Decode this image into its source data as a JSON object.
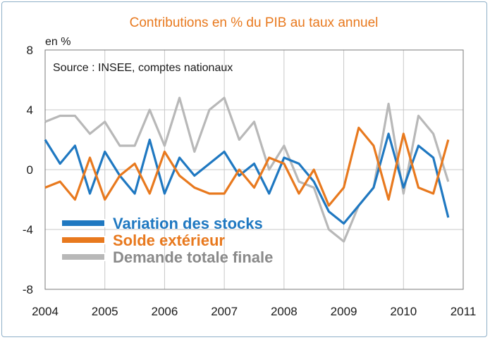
{
  "chart_data": {
    "type": "line",
    "title": "Contributions en % du PIB au taux annuel",
    "unit_label": "en %",
    "source": "Source : INSEE, comptes nationaux",
    "xlabel": "",
    "ylabel": "",
    "xlim": [
      2004,
      2011
    ],
    "ylim": [
      -8,
      8
    ],
    "x_ticks": [
      "2004",
      "2005",
      "2006",
      "2007",
      "2008",
      "2009",
      "2010",
      "2011"
    ],
    "y_ticks": [
      8,
      4,
      0,
      -4,
      -8
    ],
    "y_tick_labels": [
      "8",
      "4",
      "0",
      "-4",
      "-8"
    ],
    "grid": "vertical gridlines at years, horizontal gridlines at y ticks",
    "legend_position": "bottom-left",
    "x": [
      2004.0,
      2004.25,
      2004.5,
      2004.75,
      2005.0,
      2005.25,
      2005.5,
      2005.75,
      2006.0,
      2006.25,
      2006.5,
      2006.75,
      2007.0,
      2007.25,
      2007.5,
      2007.75,
      2008.0,
      2008.25,
      2008.5,
      2008.75,
      2009.0,
      2009.25,
      2009.5,
      2009.75,
      2010.0,
      2010.25,
      2010.5,
      2010.75
    ],
    "series": [
      {
        "name": "Variation des stocks",
        "color": "#1f78c1",
        "values": [
          2.0,
          0.4,
          1.6,
          -1.6,
          1.2,
          -0.4,
          -1.6,
          2.0,
          -1.6,
          0.8,
          -0.4,
          0.4,
          1.2,
          -0.4,
          0.4,
          -1.6,
          0.8,
          0.4,
          -0.8,
          -2.8,
          -3.6,
          -2.4,
          -1.2,
          2.4,
          -1.2,
          1.6,
          0.8,
          -3.2
        ]
      },
      {
        "name": "Solde extérieur",
        "color": "#e8791e",
        "values": [
          -1.2,
          -0.8,
          -2.0,
          0.8,
          -2.0,
          -0.4,
          0.4,
          -1.6,
          1.2,
          -0.4,
          -1.2,
          -1.6,
          -1.6,
          0.0,
          -1.2,
          0.8,
          0.4,
          -1.6,
          0.0,
          -2.4,
          -1.2,
          2.8,
          1.6,
          -2.0,
          2.4,
          -1.2,
          -1.6,
          2.0
        ]
      },
      {
        "name": "Demande totale finale",
        "color": "#b8b8b8",
        "values": [
          3.2,
          3.6,
          3.6,
          2.4,
          3.2,
          1.6,
          1.6,
          4.0,
          1.6,
          4.8,
          1.2,
          4.0,
          4.8,
          2.0,
          3.2,
          0.0,
          1.6,
          -0.8,
          -1.2,
          -4.0,
          -4.8,
          -2.4,
          -1.2,
          4.4,
          -1.6,
          3.6,
          2.4,
          -0.8
        ]
      }
    ]
  }
}
